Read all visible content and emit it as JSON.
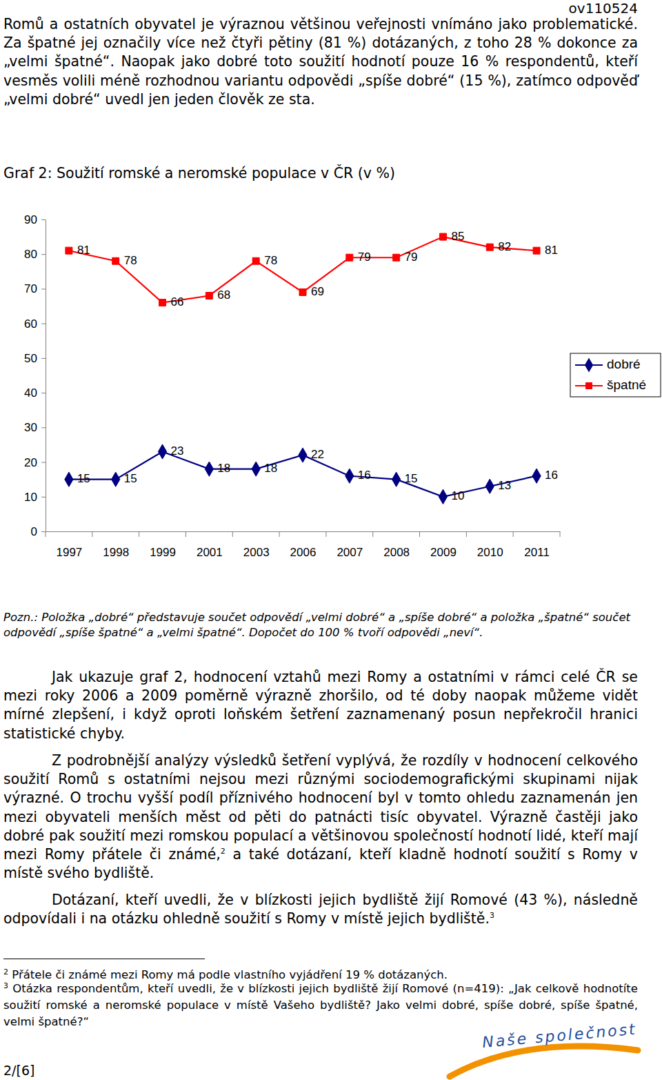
{
  "header": {
    "doc_id": "ov110524"
  },
  "intro": "Romů a ostatních obyvatel je výraznou většinou veřejnosti vnímáno jako problematické. Za špatné jej označily více než čtyři pětiny (81 %) dotázaných, z toho 28 % dokonce za „velmi špatné“. Naopak jako dobré toto soužití hodnotí pouze 16 % respondentů, kteří vesměs volili méně rozhodnou variantu odpovědi „spíše dobré“ (15 %), zatímco odpověď „velmi dobré“ uvedl jen jeden člověk ze sta.",
  "chart_data": {
    "type": "line",
    "title": "Graf 2: Soužití romské a neromské populace v ČR (v %)",
    "categories": [
      "1997",
      "1998",
      "1999",
      "2001",
      "2003",
      "2006",
      "2007",
      "2008",
      "2009",
      "2010",
      "2011"
    ],
    "series": [
      {
        "name": "dobré",
        "color": "#000080",
        "marker": "diamond",
        "values": [
          15,
          15,
          23,
          18,
          18,
          22,
          16,
          15,
          10,
          13,
          16
        ]
      },
      {
        "name": "špatné",
        "color": "#ff0000",
        "marker": "square",
        "values": [
          81,
          78,
          66,
          68,
          78,
          69,
          79,
          79,
          85,
          82,
          81
        ]
      }
    ],
    "ylim": [
      0,
      90
    ],
    "yticks": [
      0,
      10,
      20,
      30,
      40,
      50,
      60,
      70,
      80,
      90
    ],
    "data_labels": true,
    "legend": "right"
  },
  "note": {
    "label": "Pozn.:",
    "text": "Položka „dobré“ představuje součet odpovědí „velmi dobré“ a „spíše dobré“ a položka „špatné“ součet odpovědí „spíše špatné“ a „velmi špatné“. Dopočet do 100 % tvoří odpovědi „neví“."
  },
  "paragraphs": [
    {
      "text": "Jak ukazuje graf 2, hodnocení vztahů mezi Romy a ostatními v rámci celé ČR se mezi roky 2006 a 2009 poměrně výrazně zhoršilo, od té doby naopak můžeme vidět mírné zlepšení, i když oproti loňském šetření zaznamenaný posun nepřekročil hranici statistické chyby."
    },
    {
      "text": "Z podrobnější analýzy výsledků šetření vyplývá, že rozdíly v hodnocení celkového soužití Romů s ostatními nejsou mezi různými sociodemografickými skupinami nijak výrazné. O trochu vyšší podíl příznivého hodnocení byl v tomto ohledu zaznamenán jen mezi obyvateli menších měst od pěti do patnácti tisíc obyvatel. Výrazně častěji jako dobré pak soužití mezi romskou populací a většinovou společností hodnotí lidé, kteří mají mezi Romy přátele či známé,",
      "footnote_ref": "2",
      "text_after": " a také dotázaní, kteří kladně hodnotí soužití s Romy v místě svého bydliště."
    },
    {
      "text": "Dotázaní, kteří uvedli, že v blízkosti jejich bydliště žijí Romové (43 %), následně odpovídali i na otázku ohledně soužití s Romy v místě jejich bydliště.",
      "footnote_ref": "3"
    }
  ],
  "footnotes": [
    {
      "number": "2",
      "text": "Přátele či známé mezi Romy má podle vlastního vyjádření 19 % dotázaných."
    },
    {
      "number": "3",
      "text": "Otázka respondentům, kteří uvedli, že v blízkosti jejich bydliště žijí Romové (n=419): „Jak celkově hodnotíte soužití romské a neromské populace v místě Vašeho bydliště? Jako velmi dobré, spíše dobré, spíše špatné, velmi špatné?“"
    }
  ],
  "footer": {
    "page": "2/[6]",
    "logo": "Naše společnost"
  }
}
